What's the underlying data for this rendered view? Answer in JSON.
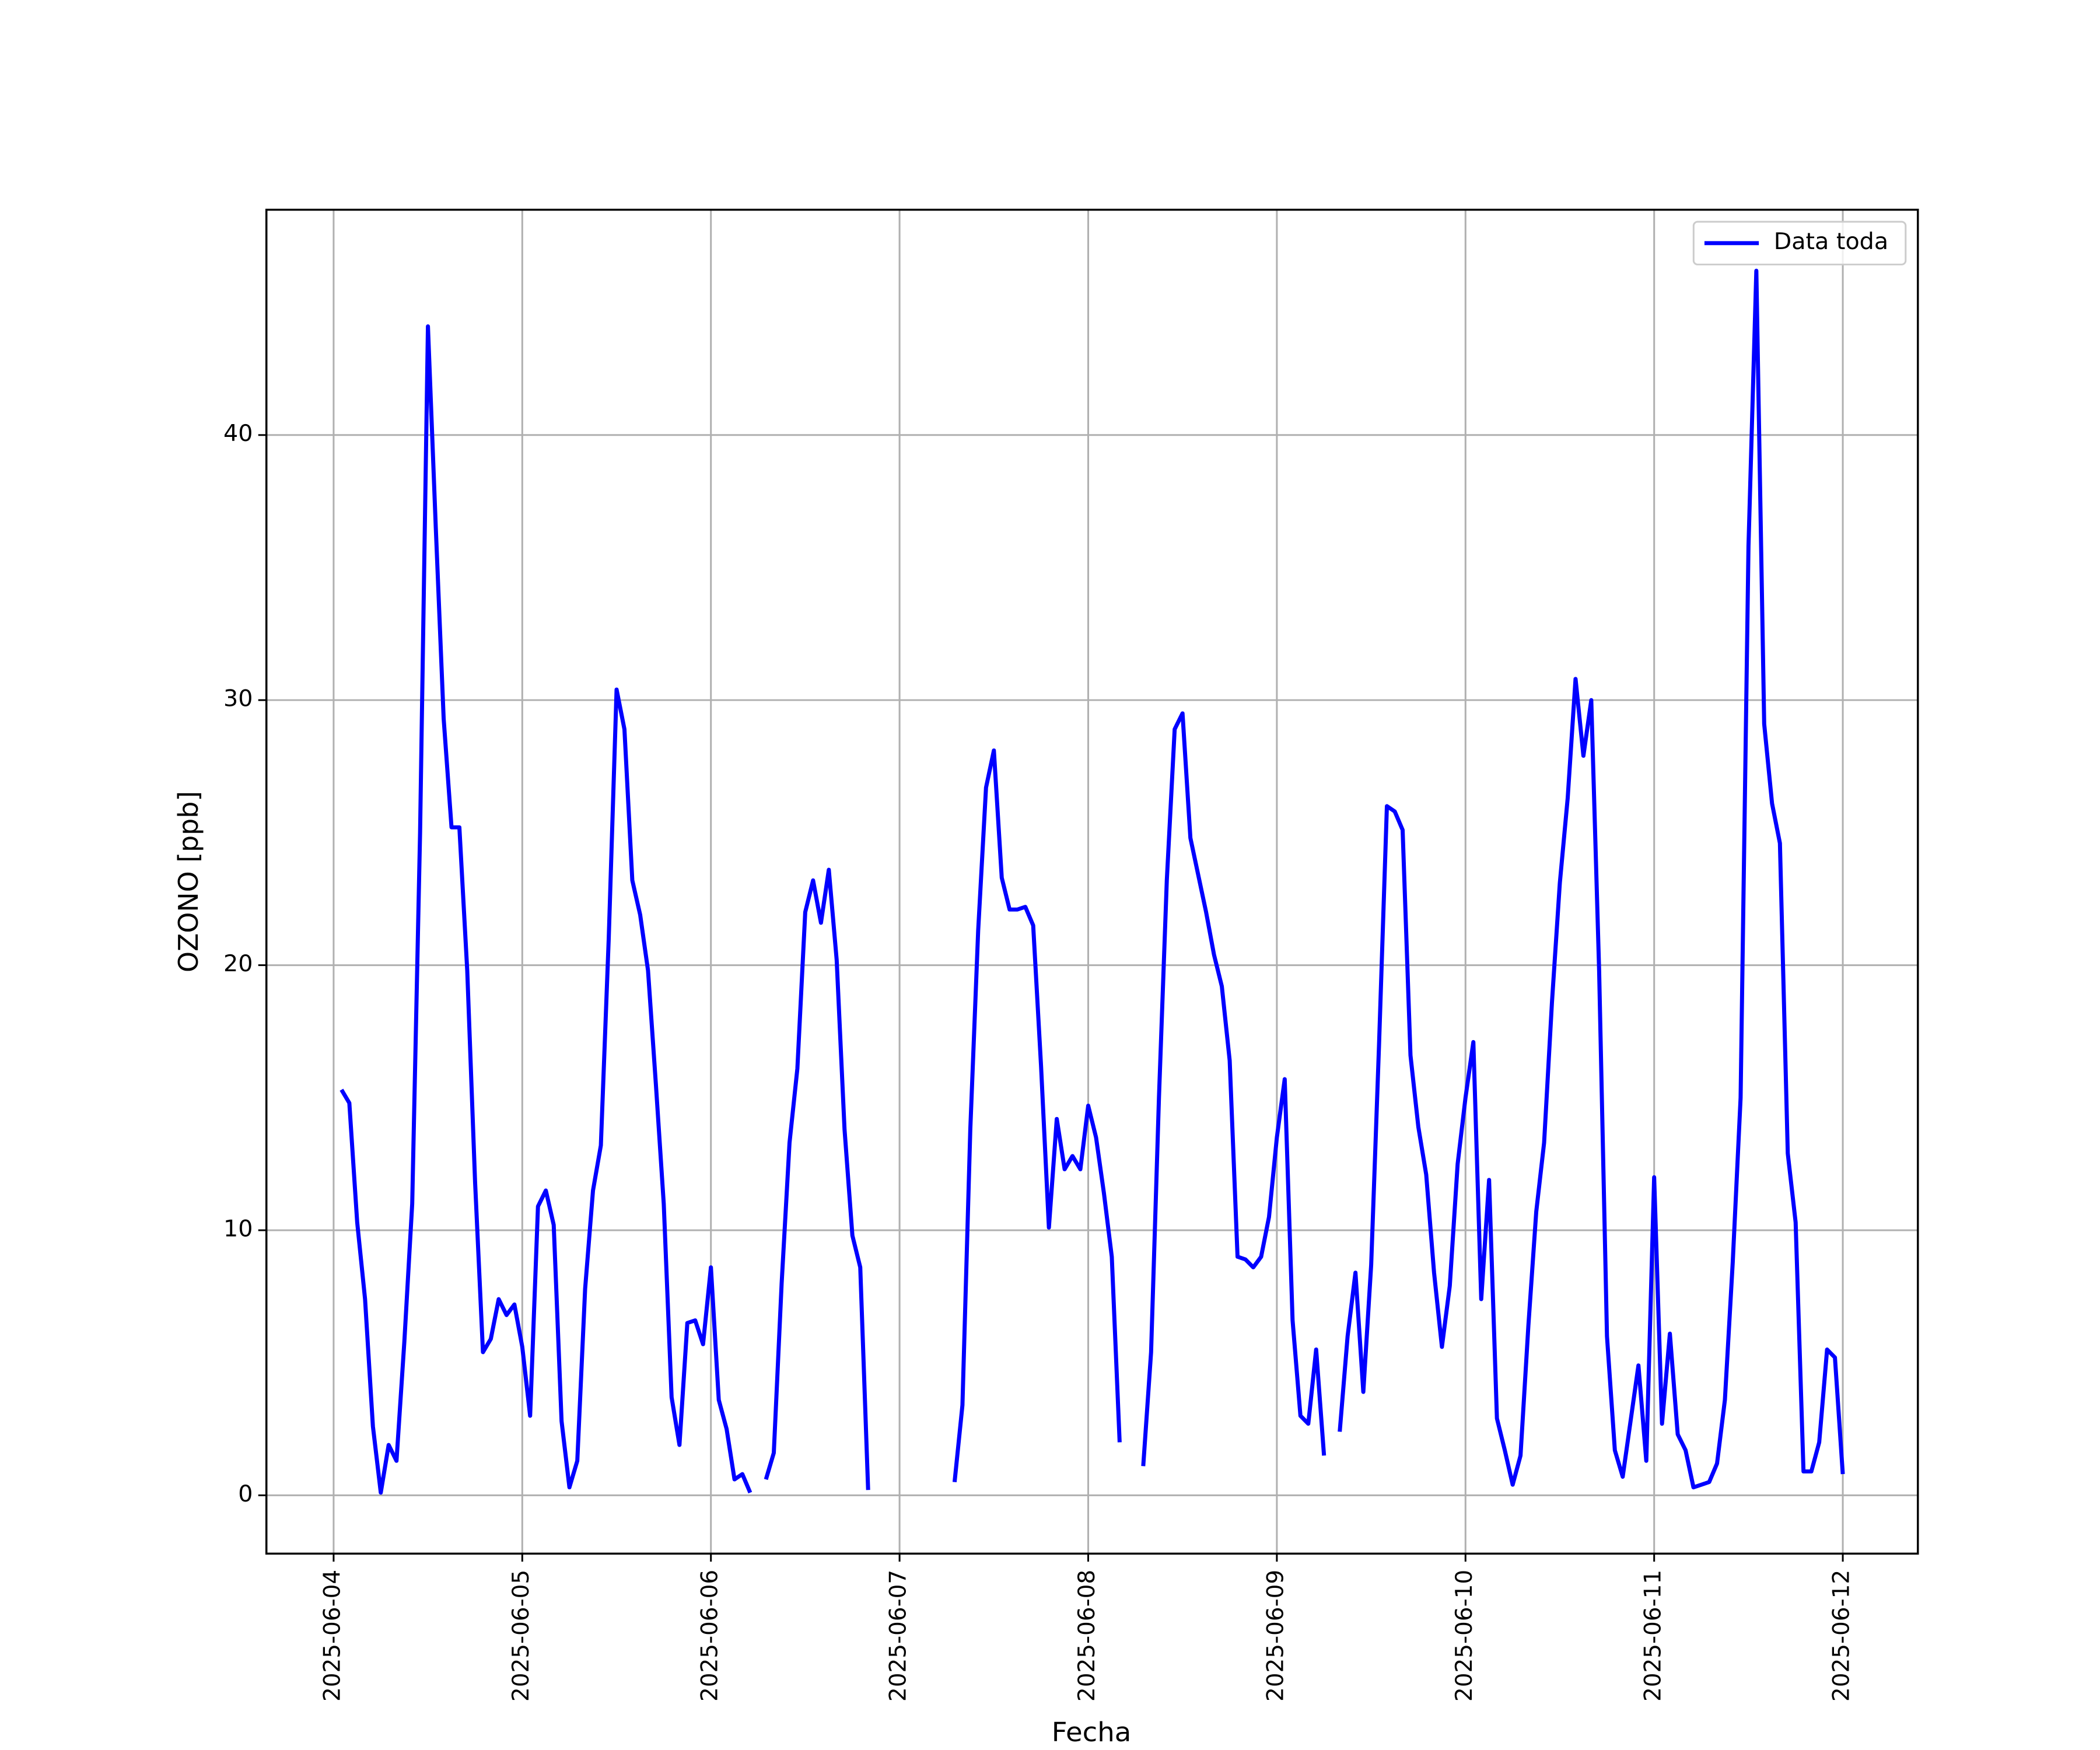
{
  "chart_data": {
    "type": "line",
    "xlabel": "Fecha",
    "ylabel": "OZONO [ppb]",
    "x": [
      "2025-06-04 01:00",
      "2025-06-04 02:00",
      "2025-06-04 03:00",
      "2025-06-04 04:00",
      "2025-06-04 05:00",
      "2025-06-04 06:00",
      "2025-06-04 07:00",
      "2025-06-04 08:00",
      "2025-06-04 09:00",
      "2025-06-04 10:00",
      "2025-06-04 11:00",
      "2025-06-04 12:00",
      "2025-06-04 13:00",
      "2025-06-04 14:00",
      "2025-06-04 15:00",
      "2025-06-04 16:00",
      "2025-06-04 17:00",
      "2025-06-04 18:00",
      "2025-06-04 19:00",
      "2025-06-04 20:00",
      "2025-06-04 21:00",
      "2025-06-04 22:00",
      "2025-06-04 23:00",
      "2025-06-05 00:00",
      "2025-06-05 01:00",
      "2025-06-05 02:00",
      "2025-06-05 03:00",
      "2025-06-05 04:00",
      "2025-06-05 05:00",
      "2025-06-05 06:00",
      "2025-06-05 07:00",
      "2025-06-05 08:00",
      "2025-06-05 09:00",
      "2025-06-05 10:00",
      "2025-06-05 11:00",
      "2025-06-05 12:00",
      "2025-06-05 13:00",
      "2025-06-05 14:00",
      "2025-06-05 15:00",
      "2025-06-05 16:00",
      "2025-06-05 17:00",
      "2025-06-05 18:00",
      "2025-06-05 19:00",
      "2025-06-05 20:00",
      "2025-06-05 21:00",
      "2025-06-05 22:00",
      "2025-06-05 23:00",
      "2025-06-06 00:00",
      "2025-06-06 01:00",
      "2025-06-06 02:00",
      "2025-06-06 03:00",
      "2025-06-06 04:00",
      "2025-06-06 05:00",
      "2025-06-06 06:00",
      "2025-06-06 07:00",
      "2025-06-06 08:00",
      "2025-06-06 09:00",
      "2025-06-06 10:00",
      "2025-06-06 11:00",
      "2025-06-06 12:00",
      "2025-06-06 13:00",
      "2025-06-06 14:00",
      "2025-06-06 15:00",
      "2025-06-06 16:00",
      "2025-06-06 17:00",
      "2025-06-06 18:00",
      "2025-06-06 19:00",
      "2025-06-06 20:00",
      "2025-06-06 21:00",
      "2025-06-06 22:00",
      "2025-06-06 23:00",
      "2025-06-07 00:00",
      "2025-06-07 01:00",
      "2025-06-07 02:00",
      "2025-06-07 03:00",
      "2025-06-07 04:00",
      "2025-06-07 05:00",
      "2025-06-07 06:00",
      "2025-06-07 07:00",
      "2025-06-07 08:00",
      "2025-06-07 09:00",
      "2025-06-07 10:00",
      "2025-06-07 11:00",
      "2025-06-07 12:00",
      "2025-06-07 13:00",
      "2025-06-07 14:00",
      "2025-06-07 15:00",
      "2025-06-07 16:00",
      "2025-06-07 17:00",
      "2025-06-07 18:00",
      "2025-06-07 19:00",
      "2025-06-07 20:00",
      "2025-06-07 21:00",
      "2025-06-07 22:00",
      "2025-06-07 23:00",
      "2025-06-08 00:00",
      "2025-06-08 01:00",
      "2025-06-08 02:00",
      "2025-06-08 03:00",
      "2025-06-08 04:00",
      "2025-06-08 05:00",
      "2025-06-08 06:00",
      "2025-06-08 07:00",
      "2025-06-08 08:00",
      "2025-06-08 09:00",
      "2025-06-08 10:00",
      "2025-06-08 11:00",
      "2025-06-08 12:00",
      "2025-06-08 13:00",
      "2025-06-08 14:00",
      "2025-06-08 15:00",
      "2025-06-08 16:00",
      "2025-06-08 17:00",
      "2025-06-08 18:00",
      "2025-06-08 19:00",
      "2025-06-08 20:00",
      "2025-06-08 21:00",
      "2025-06-08 22:00",
      "2025-06-08 23:00",
      "2025-06-09 00:00",
      "2025-06-09 01:00",
      "2025-06-09 02:00",
      "2025-06-09 03:00",
      "2025-06-09 04:00",
      "2025-06-09 05:00",
      "2025-06-09 06:00",
      "2025-06-09 07:00",
      "2025-06-09 08:00",
      "2025-06-09 09:00",
      "2025-06-09 10:00",
      "2025-06-09 11:00",
      "2025-06-09 12:00",
      "2025-06-09 13:00",
      "2025-06-09 14:00",
      "2025-06-09 15:00",
      "2025-06-09 16:00",
      "2025-06-09 17:00",
      "2025-06-09 18:00",
      "2025-06-09 19:00",
      "2025-06-09 20:00",
      "2025-06-09 21:00",
      "2025-06-09 22:00",
      "2025-06-09 23:00",
      "2025-06-10 00:00",
      "2025-06-10 01:00",
      "2025-06-10 02:00",
      "2025-06-10 03:00",
      "2025-06-10 04:00",
      "2025-06-10 05:00",
      "2025-06-10 06:00",
      "2025-06-10 07:00",
      "2025-06-10 08:00",
      "2025-06-10 09:00",
      "2025-06-10 10:00",
      "2025-06-10 11:00",
      "2025-06-10 12:00",
      "2025-06-10 13:00",
      "2025-06-10 14:00",
      "2025-06-10 15:00",
      "2025-06-10 16:00",
      "2025-06-10 17:00",
      "2025-06-10 18:00",
      "2025-06-10 19:00",
      "2025-06-10 20:00",
      "2025-06-10 21:00",
      "2025-06-10 22:00",
      "2025-06-10 23:00",
      "2025-06-11 00:00",
      "2025-06-11 01:00",
      "2025-06-11 02:00",
      "2025-06-11 03:00",
      "2025-06-11 04:00",
      "2025-06-11 05:00",
      "2025-06-11 06:00",
      "2025-06-11 07:00",
      "2025-06-11 08:00",
      "2025-06-11 09:00",
      "2025-06-11 10:00",
      "2025-06-11 11:00",
      "2025-06-11 12:00",
      "2025-06-11 13:00",
      "2025-06-11 14:00",
      "2025-06-11 15:00",
      "2025-06-11 16:00",
      "2025-06-11 17:00",
      "2025-06-11 18:00",
      "2025-06-11 19:00",
      "2025-06-11 20:00",
      "2025-06-11 21:00",
      "2025-06-11 22:00",
      "2025-06-11 23:00",
      "2025-06-12 00:00"
    ],
    "series": [
      {
        "name": "Data toda",
        "color": "#0000ff",
        "values": [
          15.3,
          14.8,
          10.3,
          7.4,
          2.6,
          0.1,
          1.9,
          1.3,
          5.8,
          11,
          25,
          44.1,
          36.5,
          29.3,
          25.2,
          25.2,
          19.8,
          11.8,
          5.4,
          5.9,
          7.4,
          6.8,
          7.2,
          5.6,
          3.0,
          10.9,
          11.5,
          10.2,
          2.8,
          0.3,
          1.3,
          7.8,
          11.5,
          13.2,
          21,
          30.4,
          28.9,
          23.2,
          21.9,
          19.8,
          15.5,
          11,
          3.7,
          1.9,
          6.5,
          6.6,
          5.7,
          8.6,
          3.6,
          2.5,
          0.6,
          0.8,
          0.1,
          null,
          0.6,
          1.6,
          8,
          13.3,
          16.1,
          22,
          23.2,
          21.6,
          23.6,
          20.2,
          13.8,
          9.8,
          8.6,
          0.2,
          null,
          null,
          null,
          null,
          null,
          null,
          null,
          null,
          null,
          null,
          0.5,
          3.4,
          13.8,
          21.3,
          26.7,
          28.1,
          23.3,
          22.1,
          22.1,
          22.2,
          21.5,
          16.2,
          10.1,
          14.2,
          12.3,
          12.8,
          12.3,
          14.7,
          13.5,
          11.4,
          9.0,
          2.0,
          null,
          null,
          1.1,
          5.4,
          15,
          23.2,
          28.9,
          29.5,
          24.8,
          23.4,
          22,
          20.4,
          19.2,
          16.4,
          9.0,
          8.9,
          8.6,
          9.0,
          10.5,
          13.5,
          15.7,
          6.6,
          3.0,
          2.7,
          5.5,
          1.5,
          null,
          2.4,
          6.0,
          8.4,
          3.9,
          8.7,
          17,
          26,
          25.8,
          25.1,
          16.6,
          13.9,
          12.1,
          8.4,
          5.6,
          7.9,
          12.5,
          15,
          17.1,
          7.4,
          11.9,
          2.9,
          1.7,
          0.4,
          1.5,
          6.4,
          10.7,
          13.3,
          18.6,
          23.1,
          26.3,
          30.8,
          27.9,
          30,
          19.8,
          6.0,
          1.7,
          0.7,
          2.8,
          4.9,
          1.3,
          12,
          2.7,
          6.1,
          2.3,
          1.7,
          0.3,
          0.4,
          0.5,
          1.2,
          3.6,
          8.8,
          15,
          35.8,
          46.2,
          29.1,
          26.1,
          24.6,
          12.9,
          10.3,
          0.9,
          0.9,
          2.0,
          5.5,
          5.2,
          0.8
        ]
      }
    ],
    "xlim": [
      "2025-06-03 15:27",
      "2025-06-12 09:33"
    ],
    "xticks": [
      "2025-06-04",
      "2025-06-05",
      "2025-06-06",
      "2025-06-07",
      "2025-06-08",
      "2025-06-09",
      "2025-06-10",
      "2025-06-11",
      "2025-06-12"
    ],
    "ylim": [
      -2.2,
      48.5
    ],
    "yticks": [
      0,
      10,
      20,
      30,
      40
    ],
    "grid": true,
    "legend": "upper right"
  }
}
